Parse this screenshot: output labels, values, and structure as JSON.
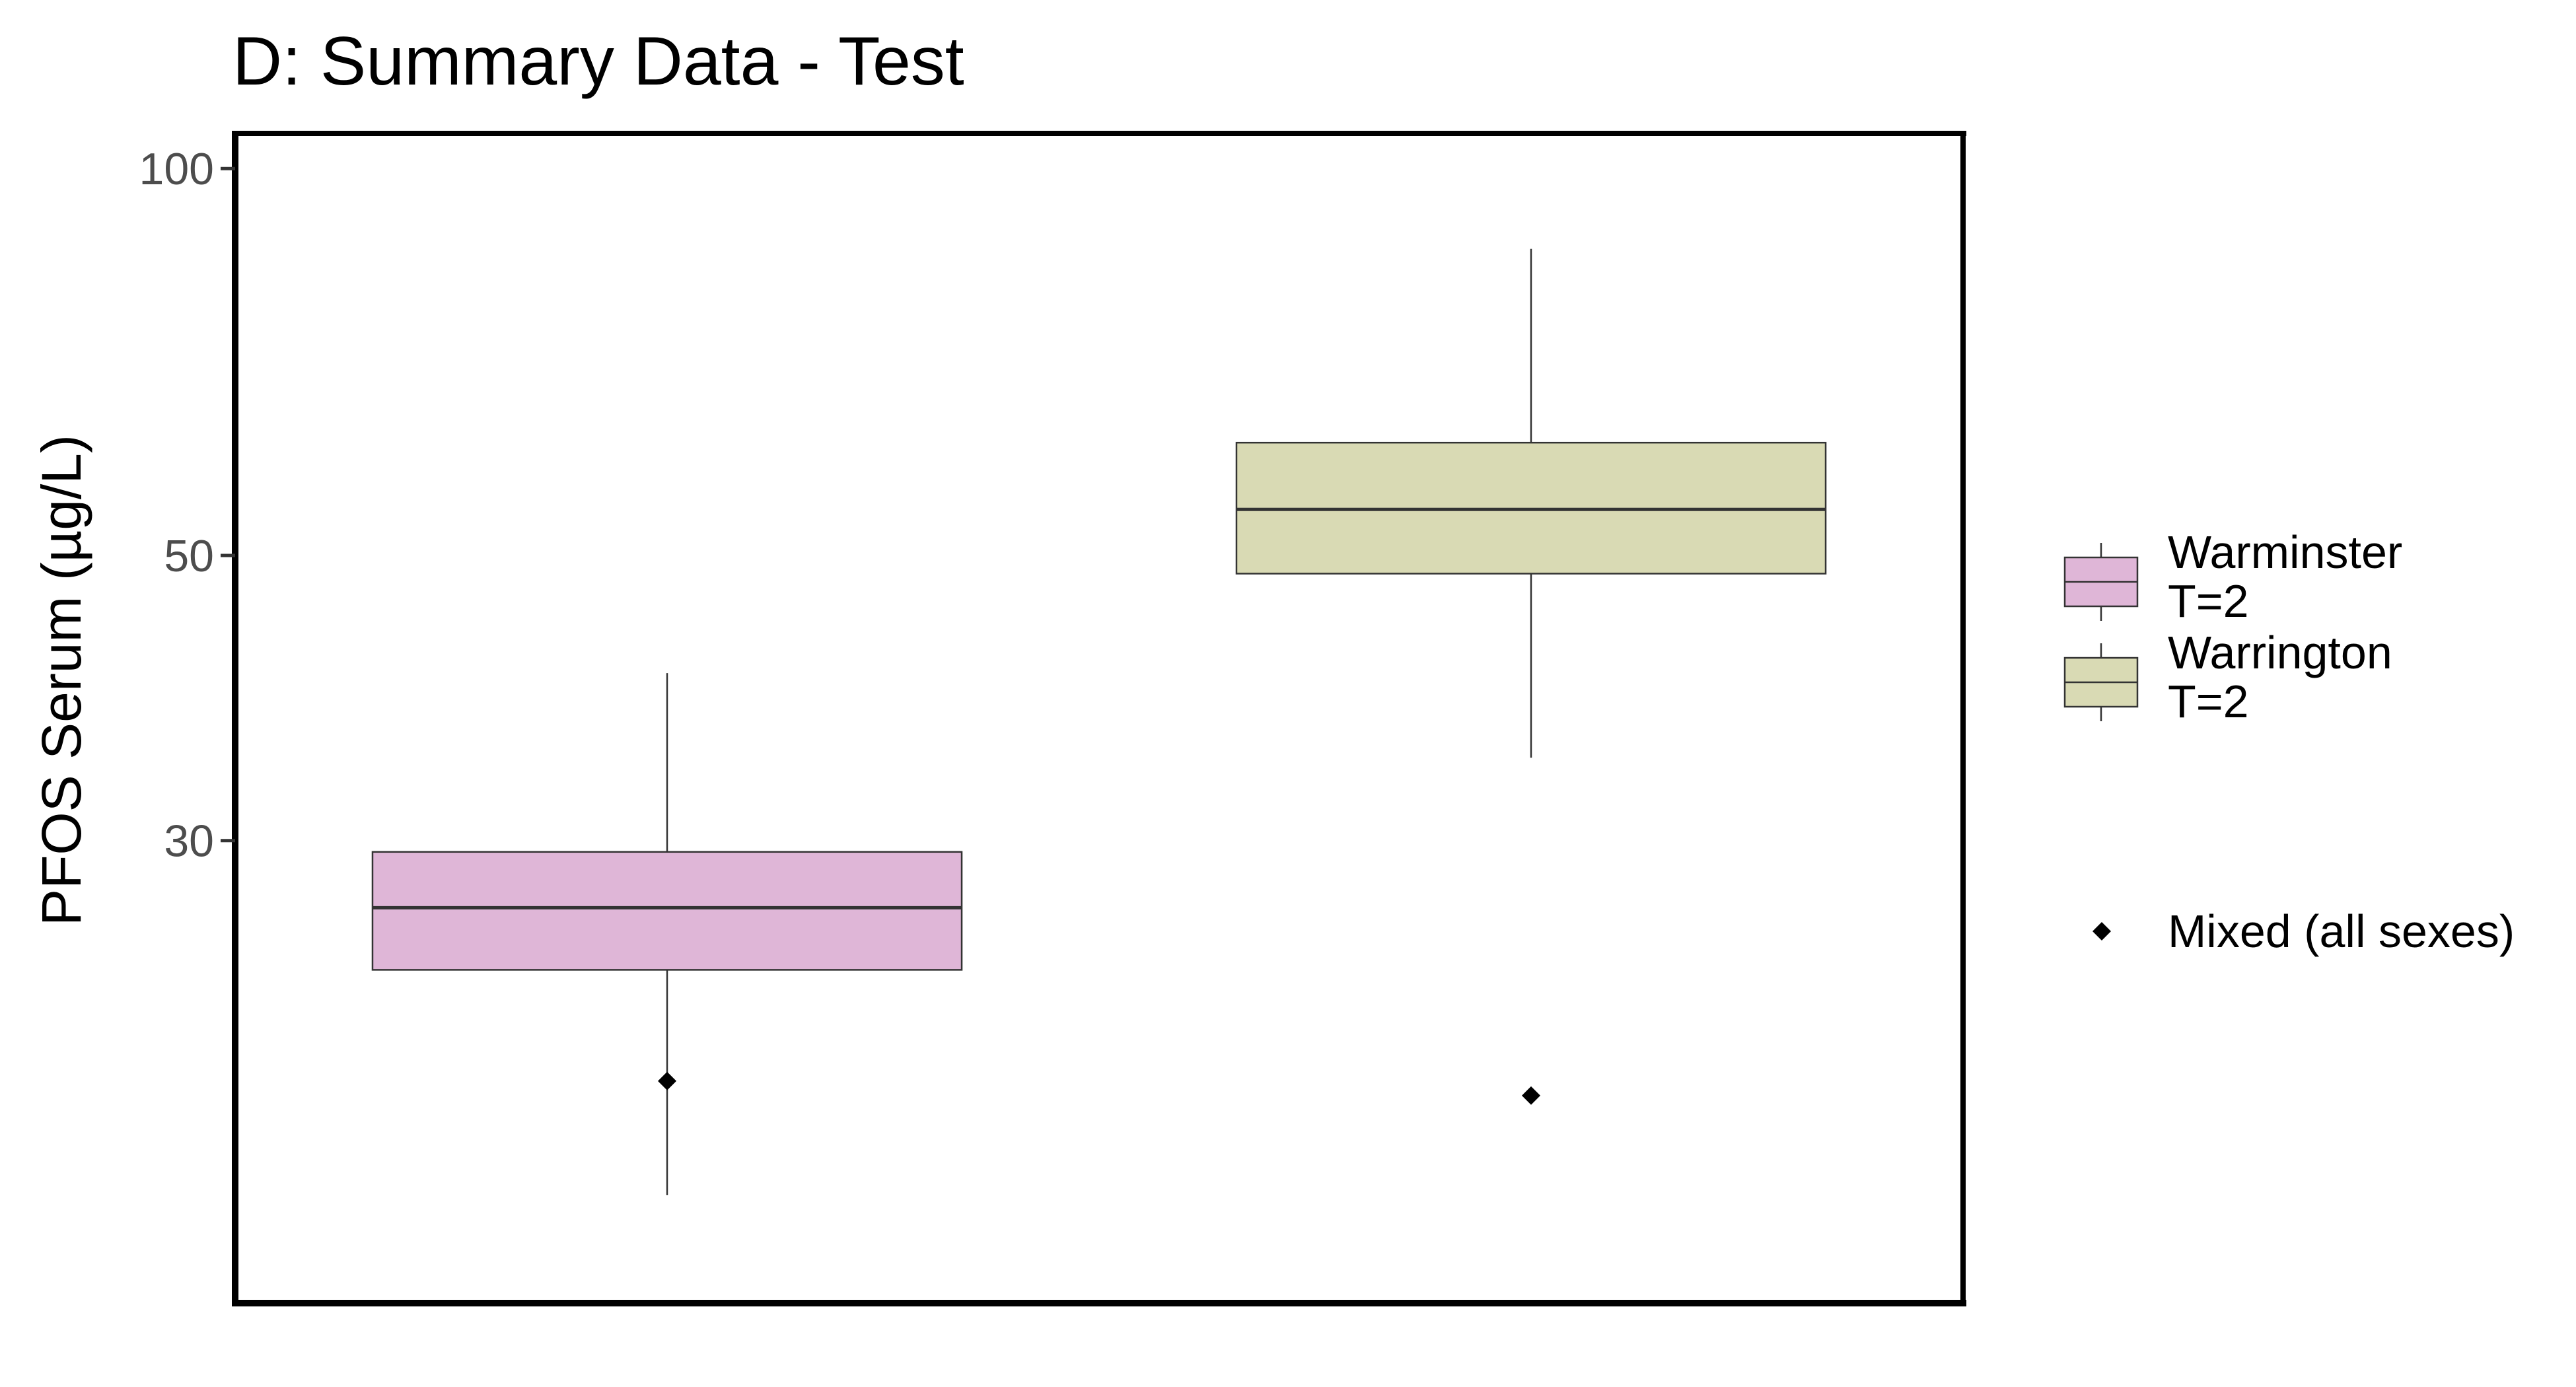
{
  "chart_data": {
    "type": "box",
    "title": "D: Summary Data - Test",
    "xlabel": "",
    "ylabel": "PFOS Serum (µg/L)",
    "y_scale": "log",
    "ylim": [
      13.1,
      106.5
    ],
    "yticks": [
      {
        "value": 30,
        "label": "30"
      },
      {
        "value": 50,
        "label": "50"
      },
      {
        "value": 100,
        "label": "100"
      }
    ],
    "grid": false,
    "legend_position": "right",
    "series": [
      {
        "name": "Warminster",
        "legend_label": "Warminster",
        "legend_sub": "T=2",
        "color": "#dfb6d7",
        "stats": {
          "min": 15.9,
          "q1": 23.8,
          "median": 26.6,
          "q3": 29.4,
          "max": 40.5
        },
        "point": 19.5
      },
      {
        "name": "Warrington",
        "legend_label": "Warrington",
        "legend_sub": "T=2",
        "color": "#d9dab4",
        "stats": {
          "min": 34.8,
          "q1": 48.4,
          "median": 54.3,
          "q3": 61.2,
          "max": 86.6
        },
        "point": 19.0
      }
    ],
    "shape_legend": {
      "label": "Mixed (all sexes)",
      "marker": "diamond"
    }
  }
}
